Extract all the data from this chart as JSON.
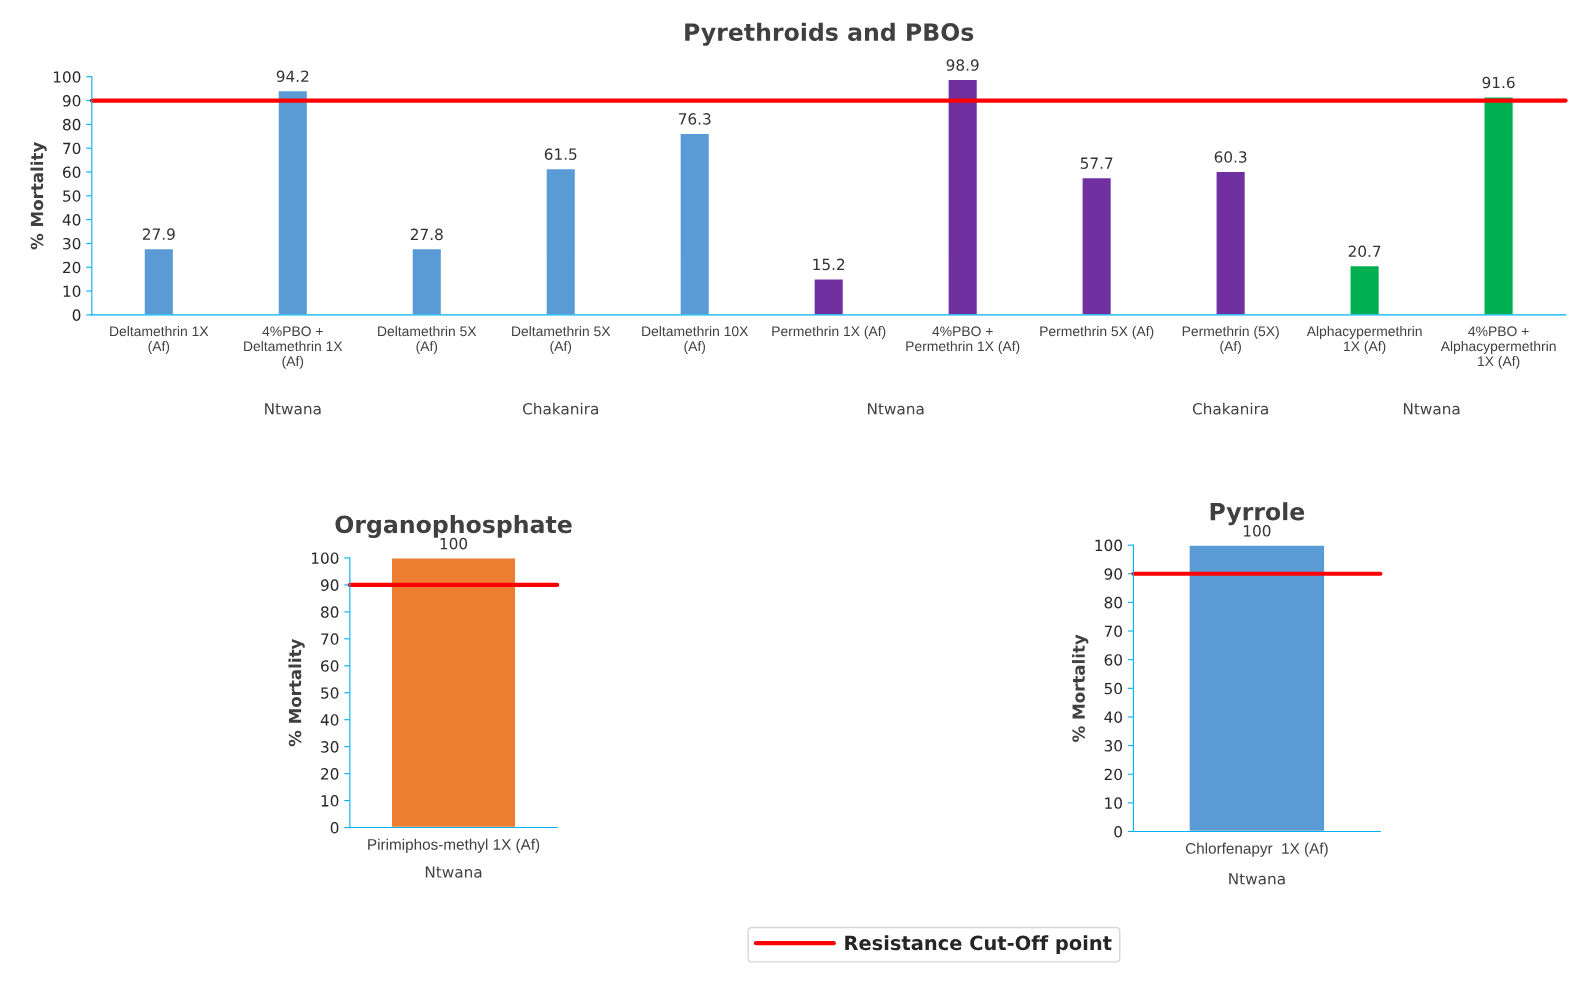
{
  "chart_data": [
    {
      "type": "bar",
      "title": "Pyrethroids and PBOs",
      "ylabel": "% Mortality",
      "categories": [
        "Deltamethrin 1X\n(Af)",
        "4%PBO +\nDeltamethrin 1X\n(Af)",
        "Deltamethrin 5X\n(Af)",
        "Deltamethrin 5X\n(Af)",
        "Deltamethrin 10X\n(Af)",
        "Permethrin 1X (Af)",
        "4%PBO +\nPermethrin 1X (Af)",
        "Permethrin 5X (Af)",
        "Permethrin (5X)\n(Af)",
        "Alphacypermethrin\n1X (Af)",
        "4%PBO +\nAlphacypermethrin\n1X (Af)"
      ],
      "values": [
        27.9,
        94.2,
        27.8,
        61.5,
        76.3,
        15.2,
        98.9,
        57.7,
        60.3,
        20.7,
        91.6
      ],
      "colors": [
        "#5b9bd5",
        "#5b9bd5",
        "#5b9bd5",
        "#5b9bd5",
        "#5b9bd5",
        "#7030a0",
        "#7030a0",
        "#7030a0",
        "#7030a0",
        "#00b050",
        "#00b050"
      ],
      "annotations": [
        "Ntwana",
        "Chakanira",
        "Ntwana",
        "Chakanira",
        "Ntwana"
      ],
      "ylim": [
        0,
        100
      ],
      "yticks": [
        0,
        10,
        20,
        30,
        40,
        50,
        60,
        70,
        80,
        90,
        100
      ],
      "grid": false,
      "data_labels": true,
      "ref_lines": [
        {
          "axis": "y",
          "value": 90,
          "label": "Resistance Cut-Off point",
          "color": "#ff0000"
        }
      ]
    },
    {
      "type": "bar",
      "title": "Organophosphate",
      "ylabel": "% Mortality",
      "categories": [
        "Pirimiphos-methyl 1X (Af)"
      ],
      "values": [
        100
      ],
      "colors": [
        "#ed7d31"
      ],
      "annotations": [
        "Ntwana"
      ],
      "ylim": [
        0,
        100
      ],
      "yticks": [
        0,
        10,
        20,
        30,
        40,
        50,
        60,
        70,
        80,
        90,
        100
      ],
      "grid": false,
      "data_labels": true,
      "ref_lines": [
        {
          "axis": "y",
          "value": 90,
          "color": "#ff0000"
        }
      ]
    },
    {
      "type": "bar",
      "title": "Pyrrole",
      "ylabel": "% Mortality",
      "categories": [
        "Chlorfenapyr  1X (Af)"
      ],
      "values": [
        100
      ],
      "colors": [
        "#5b9bd5"
      ],
      "annotations": [
        "Ntwana"
      ],
      "ylim": [
        0,
        100
      ],
      "yticks": [
        0,
        10,
        20,
        30,
        40,
        50,
        60,
        70,
        80,
        90,
        100
      ],
      "grid": false,
      "data_labels": true,
      "ref_lines": [
        {
          "axis": "y",
          "value": 90,
          "color": "#ff0000"
        }
      ]
    }
  ]
}
